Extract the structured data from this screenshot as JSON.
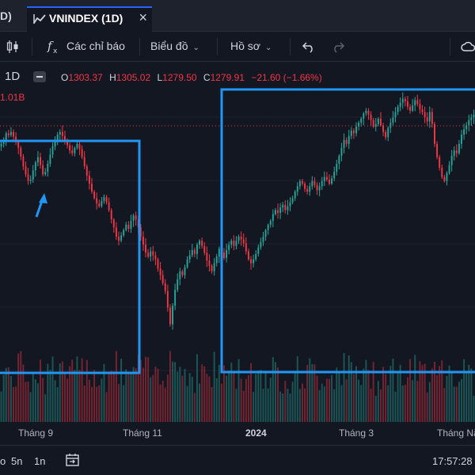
{
  "tabs": {
    "prev_fragment": "D)",
    "active_label": "VNINDEX (1D)",
    "close_glyph": "×"
  },
  "toolbar": {
    "indicators_label": "Các chỉ báo",
    "chart_type_label": "Biểu đồ",
    "template_label": "Hồ sơ",
    "icons": [
      "candle-style-icon",
      "fx-icon",
      "undo-icon",
      "redo-icon",
      "cloud-icon"
    ]
  },
  "legend": {
    "interval": "1D",
    "open_key": "O",
    "open": "1303.37",
    "high_key": "H",
    "high": "1305.02",
    "low_key": "L",
    "low": "1279.50",
    "close_key": "C",
    "close": "1279.91",
    "change": "−21.60 (−1.66%)",
    "volume_fragment": "1.01B"
  },
  "time_axis": [
    "Tháng 9",
    "Tháng 11",
    "2024",
    "Tháng 3",
    "Tháng Nă"
  ],
  "bottom": {
    "ranges": [
      "5n",
      "1n"
    ],
    "first_fragment": "o",
    "clock": "17:57:28"
  },
  "colors": {
    "background": "#131722",
    "up": "#26a69a",
    "down": "#f23645",
    "annotation": "#2196f3"
  },
  "chart_data": {
    "type": "candlestick",
    "symbol": "VNINDEX",
    "interval": "1D",
    "ylim": [
      950,
      1320
    ],
    "close_series": [
      1232,
      1238,
      1248,
      1245,
      1250,
      1243,
      1236,
      1226,
      1213,
      1198,
      1186,
      1176,
      1178,
      1192,
      1204,
      1212,
      1200,
      1186,
      1190,
      1202,
      1216,
      1228,
      1238,
      1246,
      1250,
      1244,
      1238,
      1230,
      1222,
      1218,
      1226,
      1232,
      1224,
      1212,
      1198,
      1184,
      1172,
      1160,
      1150,
      1142,
      1138,
      1146,
      1152,
      1144,
      1132,
      1118,
      1106,
      1092,
      1086,
      1094,
      1102,
      1110,
      1104,
      1116,
      1124,
      1118,
      1106,
      1092,
      1080,
      1068,
      1062,
      1070,
      1064,
      1058,
      1044,
      1034,
      1022,
      1010,
      985,
      960,
      988,
      1012,
      1028,
      1040,
      1034,
      1046,
      1058,
      1064,
      1072,
      1066,
      1080,
      1086,
      1078,
      1068,
      1056,
      1048,
      1040,
      1052,
      1062,
      1074,
      1068,
      1060,
      1072,
      1080,
      1086,
      1078,
      1086,
      1092,
      1088,
      1082,
      1070,
      1058,
      1052,
      1058,
      1066,
      1076,
      1084,
      1092,
      1102,
      1110,
      1116,
      1126,
      1132,
      1128,
      1136,
      1140,
      1132,
      1138,
      1144,
      1150,
      1160,
      1168,
      1176,
      1172,
      1164,
      1160,
      1168,
      1176,
      1170,
      1162,
      1168,
      1176,
      1182,
      1178,
      1172,
      1180,
      1190,
      1202,
      1214,
      1226,
      1238,
      1232,
      1244,
      1252,
      1248,
      1258,
      1264,
      1270,
      1278,
      1282,
      1276,
      1268,
      1258,
      1262,
      1270,
      1260,
      1250,
      1242,
      1256,
      1264,
      1272,
      1280,
      1288,
      1294,
      1300,
      1296,
      1288,
      1282,
      1290,
      1298,
      1292,
      1284,
      1280,
      1272,
      1266,
      1280,
      1262,
      1232,
      1212,
      1196,
      1182,
      1176,
      1188,
      1200,
      1214,
      1222,
      1218,
      1232,
      1246,
      1254,
      1260,
      1268,
      1272,
      1276
    ]
  }
}
